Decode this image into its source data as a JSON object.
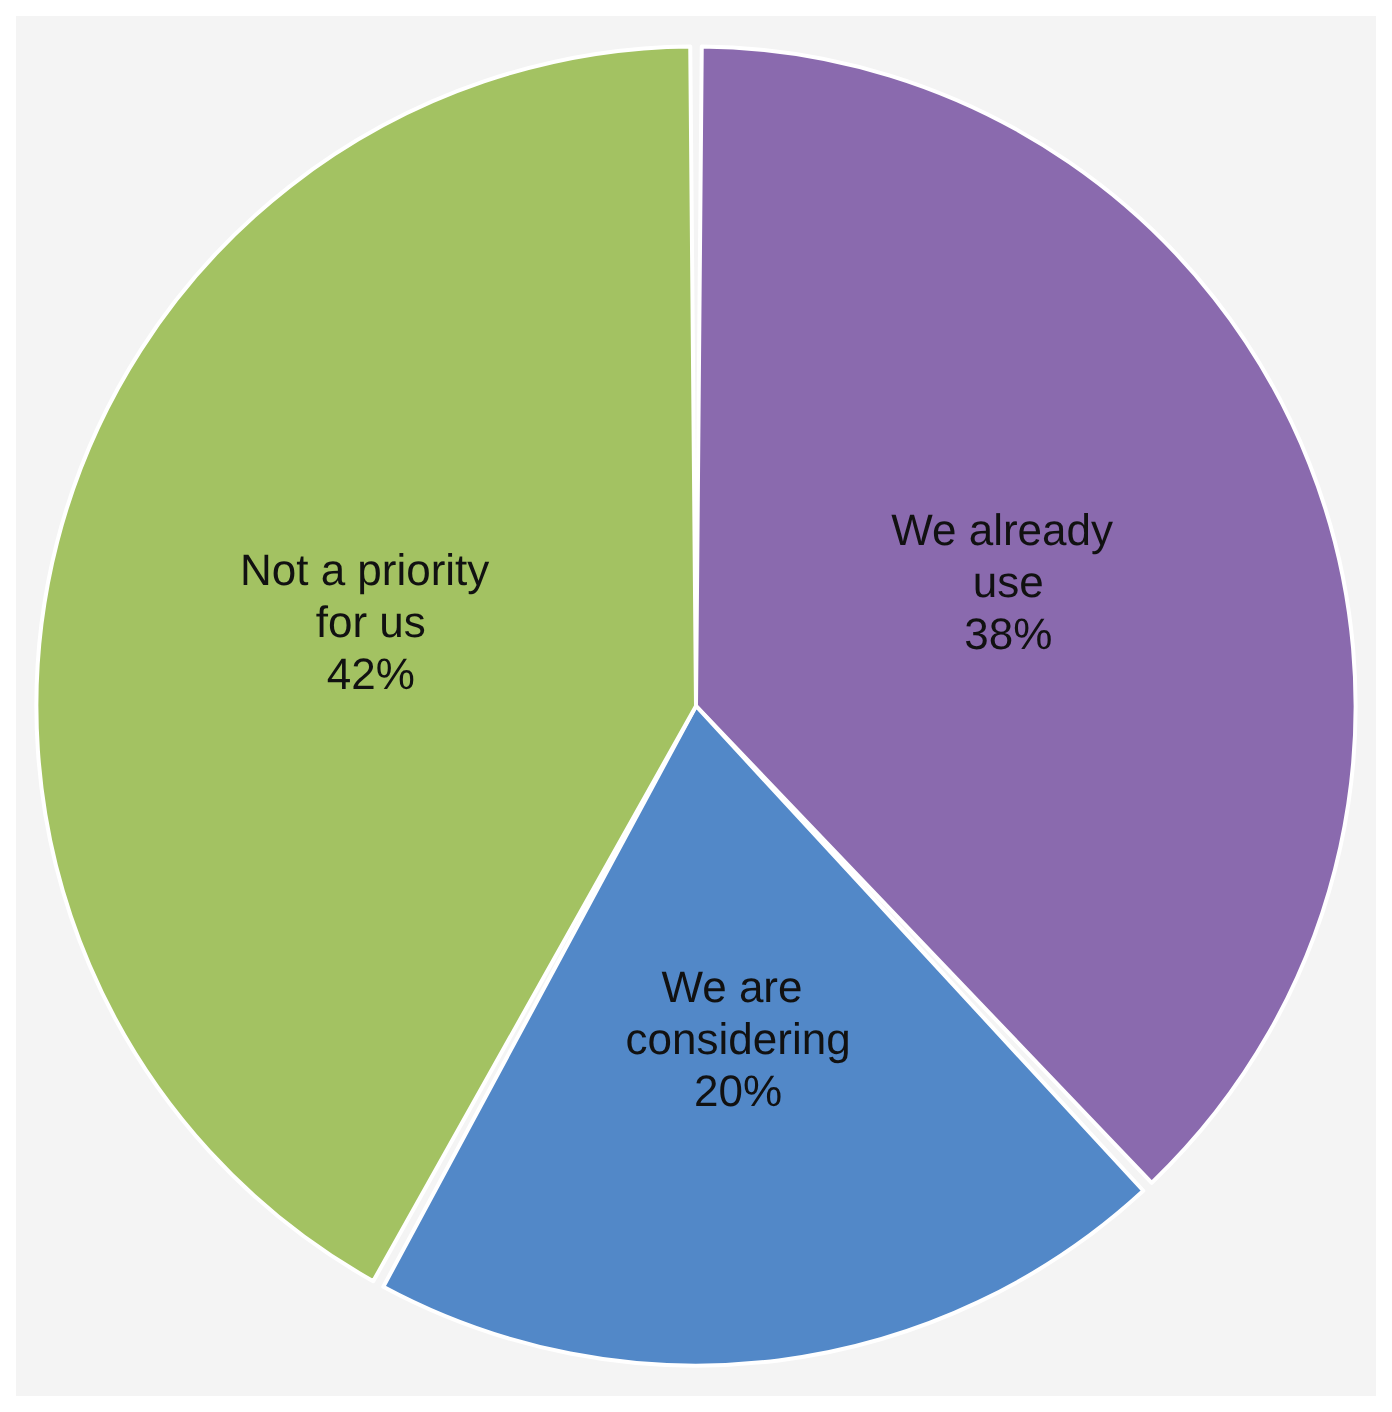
{
  "chart_data": {
    "type": "pie",
    "categories": [
      "We already use",
      "We are considering",
      "Not a priority for us"
    ],
    "values": [
      38,
      20,
      42
    ],
    "colors": [
      "#8a6aae",
      "#5288c8",
      "#a3c262"
    ],
    "value_labels": [
      "38%",
      "20%",
      "42%"
    ],
    "legend": false
  }
}
